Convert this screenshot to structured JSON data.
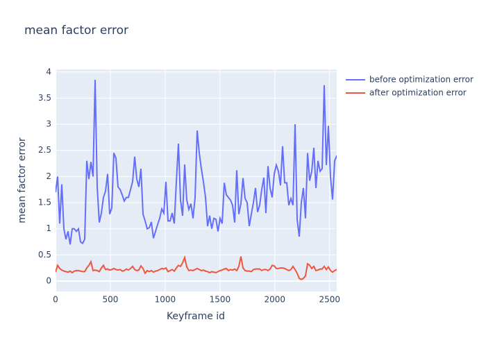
{
  "chart_data": {
    "type": "line",
    "title": "mean factor error",
    "x_label": "Keyframe id",
    "y_label": "mean factor error",
    "x": [
      0,
      19,
      38,
      57,
      76,
      95,
      114,
      133,
      152,
      171,
      190,
      209,
      228,
      247,
      266,
      285,
      304,
      323,
      342,
      361,
      380,
      399,
      418,
      437,
      456,
      475,
      494,
      513,
      532,
      551,
      570,
      589,
      608,
      627,
      646,
      665,
      684,
      703,
      722,
      741,
      760,
      779,
      798,
      817,
      836,
      855,
      874,
      893,
      912,
      931,
      950,
      969,
      988,
      1007,
      1026,
      1045,
      1064,
      1083,
      1102,
      1121,
      1140,
      1159,
      1178,
      1197,
      1216,
      1235,
      1254,
      1273,
      1292,
      1311,
      1330,
      1349,
      1368,
      1387,
      1406,
      1425,
      1444,
      1463,
      1482,
      1501,
      1520,
      1539,
      1558,
      1577,
      1596,
      1615,
      1634,
      1653,
      1672,
      1691,
      1710,
      1729,
      1748,
      1767,
      1786,
      1805,
      1824,
      1843,
      1862,
      1881,
      1900,
      1919,
      1938,
      1957,
      1976,
      1995,
      2014,
      2033,
      2052,
      2071,
      2090,
      2109,
      2128,
      2147,
      2166,
      2185,
      2204,
      2223,
      2242,
      2261,
      2280,
      2299,
      2318,
      2337,
      2356,
      2375,
      2394,
      2413,
      2432,
      2451,
      2470,
      2489,
      2508,
      2527,
      2546,
      2565
    ],
    "series": [
      {
        "name": "before optimization error",
        "color": "#636efa",
        "values": [
          1.7,
          2.0,
          1.1,
          1.85,
          1.0,
          0.8,
          0.95,
          0.7,
          1.0,
          1.0,
          0.95,
          1.0,
          0.75,
          0.72,
          0.8,
          2.3,
          1.95,
          2.28,
          2.0,
          3.85,
          1.8,
          1.12,
          1.3,
          1.6,
          1.72,
          2.05,
          1.28,
          1.4,
          2.45,
          2.35,
          1.8,
          1.75,
          1.65,
          1.53,
          1.6,
          1.6,
          1.75,
          1.9,
          2.38,
          1.95,
          1.8,
          2.15,
          1.28,
          1.15,
          1.0,
          1.02,
          1.13,
          0.82,
          0.95,
          1.08,
          1.2,
          1.38,
          1.3,
          1.9,
          1.15,
          1.15,
          1.3,
          1.1,
          1.9,
          2.63,
          1.55,
          1.25,
          2.23,
          1.55,
          1.37,
          1.48,
          1.2,
          1.6,
          2.88,
          2.45,
          2.15,
          1.9,
          1.6,
          1.05,
          1.25,
          1.0,
          1.2,
          1.18,
          0.95,
          1.2,
          1.1,
          1.88,
          1.65,
          1.6,
          1.55,
          1.45,
          1.12,
          2.12,
          1.28,
          1.48,
          1.97,
          1.58,
          1.5,
          1.05,
          1.28,
          1.5,
          1.78,
          1.32,
          1.45,
          1.75,
          1.98,
          1.3,
          2.2,
          1.78,
          1.6,
          2.05,
          2.22,
          2.1,
          1.83,
          2.58,
          1.88,
          1.88,
          1.45,
          1.58,
          1.45,
          3.0,
          1.18,
          0.85,
          1.5,
          1.78,
          1.2,
          2.45,
          1.92,
          2.1,
          2.55,
          1.78,
          2.3,
          2.1,
          2.15,
          3.75,
          2.22,
          2.97,
          2.0,
          1.56,
          2.3,
          2.4
        ]
      },
      {
        "name": "after optimization error",
        "color": "#ef553b",
        "values": [
          0.17,
          0.3,
          0.24,
          0.21,
          0.19,
          0.18,
          0.17,
          0.19,
          0.16,
          0.19,
          0.2,
          0.2,
          0.19,
          0.18,
          0.18,
          0.25,
          0.3,
          0.37,
          0.2,
          0.21,
          0.2,
          0.18,
          0.25,
          0.3,
          0.22,
          0.23,
          0.21,
          0.22,
          0.24,
          0.22,
          0.21,
          0.22,
          0.19,
          0.2,
          0.23,
          0.21,
          0.24,
          0.28,
          0.22,
          0.2,
          0.21,
          0.29,
          0.24,
          0.15,
          0.2,
          0.18,
          0.2,
          0.17,
          0.19,
          0.2,
          0.22,
          0.24,
          0.23,
          0.25,
          0.18,
          0.2,
          0.22,
          0.19,
          0.25,
          0.3,
          0.28,
          0.35,
          0.45,
          0.27,
          0.2,
          0.21,
          0.2,
          0.22,
          0.24,
          0.22,
          0.2,
          0.21,
          0.19,
          0.18,
          0.16,
          0.18,
          0.17,
          0.16,
          0.18,
          0.2,
          0.21,
          0.23,
          0.24,
          0.2,
          0.22,
          0.21,
          0.23,
          0.2,
          0.28,
          0.47,
          0.25,
          0.2,
          0.19,
          0.19,
          0.18,
          0.22,
          0.23,
          0.23,
          0.23,
          0.2,
          0.22,
          0.22,
          0.2,
          0.23,
          0.3,
          0.29,
          0.24,
          0.24,
          0.25,
          0.25,
          0.24,
          0.22,
          0.2,
          0.22,
          0.28,
          0.22,
          0.15,
          0.05,
          0.03,
          0.05,
          0.1,
          0.33,
          0.3,
          0.24,
          0.28,
          0.2,
          0.21,
          0.23,
          0.23,
          0.28,
          0.22,
          0.27,
          0.2,
          0.17,
          0.2,
          0.22
        ]
      }
    ],
    "xlim": [
      0,
      2565
    ],
    "ylim": [
      -0.2,
      4.05
    ],
    "xticks": [
      0,
      500,
      1000,
      1500,
      2000,
      2500
    ],
    "yticks": [
      0,
      0.5,
      1,
      1.5,
      2,
      2.5,
      3,
      3.5,
      4
    ],
    "grid": true
  }
}
